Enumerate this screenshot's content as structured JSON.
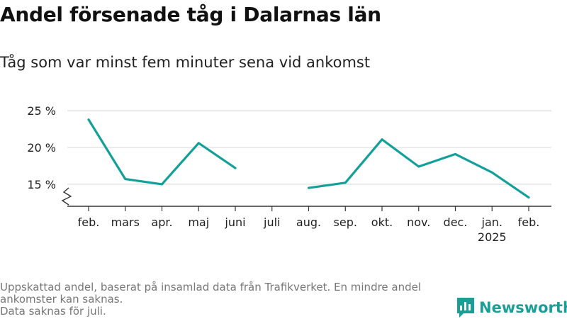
{
  "title": "Andel försenade tåg i Dalarnas län",
  "subtitle": "Tåg som var minst fem minuter sena vid ankomst",
  "footer": {
    "line1": "Uppskattad andel, baserat på insamlad data från Trafikverket. En mindre andel",
    "line2": "ankomster kan saknas.",
    "line3": "Data saknas för juli."
  },
  "brand": {
    "name": "Newsworthy",
    "icon": "newsworthy-logo-icon"
  },
  "colors": {
    "line": "#14a098",
    "grid": "#dcdcdc",
    "axis": "#333333"
  },
  "chart_data": {
    "type": "line",
    "title": "Andel försenade tåg i Dalarnas län",
    "subtitle": "Tåg som var minst fem minuter sena vid ankomst",
    "xlabel": "",
    "ylabel": "",
    "categories": [
      "feb.",
      "mars",
      "apr.",
      "maj",
      "juni",
      "juli",
      "aug.",
      "sep.",
      "okt.",
      "nov.",
      "dec.",
      "jan.",
      "feb."
    ],
    "category_sublabels": [
      "",
      "",
      "",
      "",
      "",
      "",
      "",
      "",
      "",
      "",
      "",
      "2025",
      ""
    ],
    "series": [
      {
        "values": [
          23.8,
          15.7,
          15.0,
          20.6,
          17.2,
          null,
          14.5,
          15.2,
          21.1,
          17.4,
          19.1,
          16.6,
          13.2
        ]
      }
    ],
    "yticks": [
      15,
      20,
      25
    ],
    "ytick_labels": [
      "15 %",
      "20 %",
      "25 %"
    ],
    "ylim": [
      12,
      25.6
    ],
    "axis_break": true,
    "grid": true
  }
}
